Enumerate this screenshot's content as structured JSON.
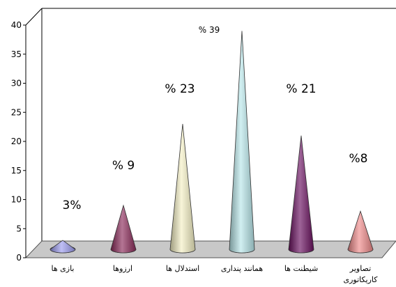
{
  "chart_data": {
    "type": "bar",
    "style": "3d-cone",
    "categories": [
      [
        "بازی ها"
      ],
      [
        "ارزوها"
      ],
      [
        "استدلال ها"
      ],
      [
        "همانند پنداری"
      ],
      [
        "شیطنت ها"
      ],
      [
        "تصاویر",
        "کاریکاتوری"
      ]
    ],
    "values": [
      3,
      9,
      23,
      39,
      21,
      8
    ],
    "data_labels": [
      "3%",
      "% 9",
      "% 23",
      "% 39",
      "% 21",
      "%8"
    ],
    "ylim": [
      0,
      40
    ],
    "yticks": [
      0,
      5,
      10,
      15,
      20,
      25,
      30,
      35,
      40
    ],
    "grid": false,
    "colors": [
      "#9c9cf0",
      "#8c2a5a",
      "#f4f0c4",
      "#b8e6ea",
      "#6a1060",
      "#f08a8a"
    ],
    "floor_color": "#c8c8c8"
  }
}
